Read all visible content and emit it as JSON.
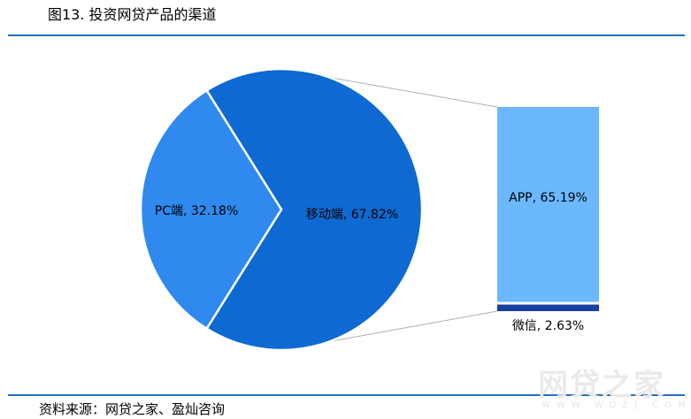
{
  "header": {
    "title": "图13. 投资网贷产品的渠道"
  },
  "footer": {
    "source": "资料来源：网贷之家、盈灿咨询",
    "watermark": "网贷之家",
    "watermark_url": "www.wdzj.com"
  },
  "chart_data": {
    "type": "pie-of-bar",
    "title": "图13. 投资网贷产品的渠道",
    "pie": [
      {
        "label": "PC端",
        "value": 32.18,
        "display": "PC端, 32.18%",
        "color": "#2f89ee"
      },
      {
        "label": "移动端",
        "value": 67.82,
        "display": "移动端, 67.82%",
        "color": "#0e69d2"
      }
    ],
    "bar": [
      {
        "label": "APP",
        "value": 65.19,
        "display": "APP, 65.19%",
        "color": "#6bb8ff"
      },
      {
        "label": "微信",
        "value": 2.63,
        "display": "微信, 2.63%",
        "color": "#1a3f9e"
      }
    ],
    "connector_color": "#b0b0b0"
  }
}
